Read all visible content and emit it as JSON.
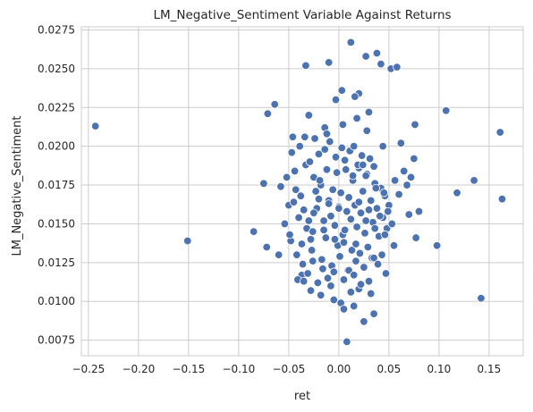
{
  "chart_data": {
    "type": "scatter",
    "title": "LM_Negative_Sentiment Variable Against Returns",
    "xlabel": "ret",
    "ylabel": "LM_Negative_Sentiment",
    "xlim": [
      -0.257,
      0.184
    ],
    "ylim": [
      0.0065,
      0.0277
    ],
    "xticks": [
      -0.25,
      -0.2,
      -0.15,
      -0.1,
      -0.05,
      0.0,
      0.05,
      0.1,
      0.15
    ],
    "xtick_labels": [
      "−0.25",
      "−0.20",
      "−0.15",
      "−0.10",
      "−0.05",
      "0.00",
      "0.05",
      "0.10",
      "0.15"
    ],
    "yticks": [
      0.0075,
      0.01,
      0.0125,
      0.015,
      0.0175,
      0.02,
      0.0225,
      0.025,
      0.0275
    ],
    "ytick_labels": [
      "0.0075",
      "0.0100",
      "0.0125",
      "0.0150",
      "0.0175",
      "0.0200",
      "0.0225",
      "0.0250",
      "0.0275"
    ],
    "grid": true,
    "marker_color": "#4c72b0",
    "marker_edge_color": "#ffffff",
    "background_color": "#ffffff",
    "grid_color": "#cccccc",
    "x": [
      -0.243,
      -0.151,
      0.161,
      0.163,
      0.142,
      0.118,
      0.135,
      0.107,
      0.098,
      0.076,
      0.075,
      0.077,
      0.062,
      0.08,
      0.072,
      0.052,
      0.012,
      0.027,
      0.038,
      0.042,
      0.058,
      0.003,
      -0.033,
      -0.01,
      0.02,
      0.016,
      -0.003,
      0.03,
      -0.064,
      -0.071,
      -0.075,
      -0.072,
      -0.085,
      -0.058,
      -0.06,
      -0.05,
      -0.04,
      -0.042,
      -0.037,
      -0.038,
      -0.033,
      -0.03,
      -0.025,
      -0.028,
      -0.02,
      -0.022,
      -0.018,
      -0.015,
      -0.012,
      -0.01,
      -0.008,
      -0.006,
      -0.004,
      -0.002,
      0.0,
      0.002,
      0.004,
      0.006,
      0.008,
      0.01,
      0.012,
      0.014,
      0.016,
      0.018,
      0.02,
      0.022,
      0.024,
      0.026,
      0.028,
      0.03,
      0.032,
      0.034,
      0.036,
      0.038,
      0.04,
      0.042,
      0.044,
      0.046,
      0.048,
      0.05,
      -0.048,
      -0.045,
      -0.043,
      -0.035,
      -0.032,
      -0.027,
      -0.023,
      -0.017,
      -0.013,
      -0.007,
      -0.001,
      0.001,
      0.005,
      0.009,
      0.013,
      0.017,
      0.021,
      0.025,
      0.029,
      0.033,
      -0.052,
      -0.047,
      -0.044,
      -0.039,
      -0.034,
      -0.029,
      -0.024,
      -0.019,
      -0.014,
      -0.009,
      -0.003,
      0.003,
      0.007,
      0.011,
      0.015,
      0.019,
      0.023,
      0.027,
      0.031,
      0.035,
      0.037,
      0.041,
      0.045,
      0.049,
      0.053,
      0.056,
      0.06,
      0.065,
      0.068,
      0.07,
      -0.036,
      -0.031,
      -0.026,
      -0.021,
      -0.016,
      -0.011,
      -0.005,
      0.005,
      0.01,
      0.015,
      0.02,
      0.025,
      0.03,
      0.035,
      0.039,
      0.043,
      0.047,
      -0.041,
      -0.028,
      -0.018,
      -0.008,
      0.002,
      0.012,
      0.022,
      0.032,
      -0.046,
      -0.03,
      -0.014,
      0.004,
      0.018,
      0.028,
      0.044,
      -0.054,
      -0.049,
      -0.037,
      -0.026,
      -0.015,
      -0.004,
      0.006,
      0.017,
      0.027,
      0.036,
      0.046,
      0.055,
      -0.02,
      -0.01,
      0.0,
      0.01,
      0.02,
      -0.025,
      0.015,
      0.005,
      -0.005,
      0.025,
      0.035,
      -0.035,
      0.008,
      -0.012,
      0.014,
      0.024
    ],
    "y": [
      0.0213,
      0.0139,
      0.0209,
      0.0166,
      0.0102,
      0.017,
      0.0178,
      0.0223,
      0.0136,
      0.0214,
      0.0192,
      0.0141,
      0.0202,
      0.0158,
      0.018,
      0.025,
      0.0267,
      0.0258,
      0.026,
      0.0253,
      0.0251,
      0.0236,
      0.0252,
      0.0254,
      0.0234,
      0.0232,
      0.023,
      0.0222,
      0.0227,
      0.0221,
      0.0176,
      0.0135,
      0.0145,
      0.0174,
      0.013,
      0.0162,
      0.0154,
      0.013,
      0.0117,
      0.0168,
      0.0188,
      0.0152,
      0.018,
      0.014,
      0.0195,
      0.016,
      0.0175,
      0.0146,
      0.0185,
      0.0165,
      0.0155,
      0.0172,
      0.0149,
      0.0183,
      0.0161,
      0.017,
      0.0143,
      0.0191,
      0.0158,
      0.0167,
      0.0153,
      0.0178,
      0.0162,
      0.0148,
      0.0186,
      0.0157,
      0.0171,
      0.0144,
      0.0182,
      0.0159,
      0.0165,
      0.0151,
      0.0176,
      0.016,
      0.0142,
      0.0173,
      0.0154,
      0.0168,
      0.0147,
      0.0162,
      0.0139,
      0.0164,
      0.0172,
      0.0159,
      0.0147,
      0.0133,
      0.0171,
      0.0127,
      0.0141,
      0.0123,
      0.0136,
      0.0129,
      0.0138,
      0.012,
      0.0133,
      0.0126,
      0.0131,
      0.0122,
      0.0135,
      0.0128,
      0.018,
      0.0196,
      0.0184,
      0.02,
      0.0206,
      0.019,
      0.0205,
      0.0178,
      0.0198,
      0.0203,
      0.0193,
      0.0199,
      0.0185,
      0.0197,
      0.02,
      0.0188,
      0.0194,
      0.0181,
      0.0192,
      0.0187,
      0.0173,
      0.0155,
      0.017,
      0.0158,
      0.015,
      0.0178,
      0.0169,
      0.0184,
      0.0175,
      0.0156,
      0.0124,
      0.0118,
      0.0126,
      0.0112,
      0.0121,
      0.0115,
      0.0119,
      0.0114,
      0.012,
      0.0117,
      0.0108,
      0.0122,
      0.0113,
      0.0128,
      0.0124,
      0.013,
      0.0118,
      0.0114,
      0.0107,
      0.0104,
      0.011,
      0.0099,
      0.0106,
      0.0111,
      0.0105,
      0.0206,
      0.022,
      0.0212,
      0.0214,
      0.0218,
      0.021,
      0.02,
      0.015,
      0.0143,
      0.0137,
      0.0145,
      0.0152,
      0.014,
      0.0146,
      0.0137,
      0.0152,
      0.0147,
      0.0143,
      0.0136,
      0.0166,
      0.0163,
      0.016,
      0.0167,
      0.0164,
      0.0157,
      0.0097,
      0.0095,
      0.0101,
      0.0087,
      0.0092,
      0.0113,
      0.0074,
      0.0208,
      0.0181,
      0.0188
    ]
  }
}
